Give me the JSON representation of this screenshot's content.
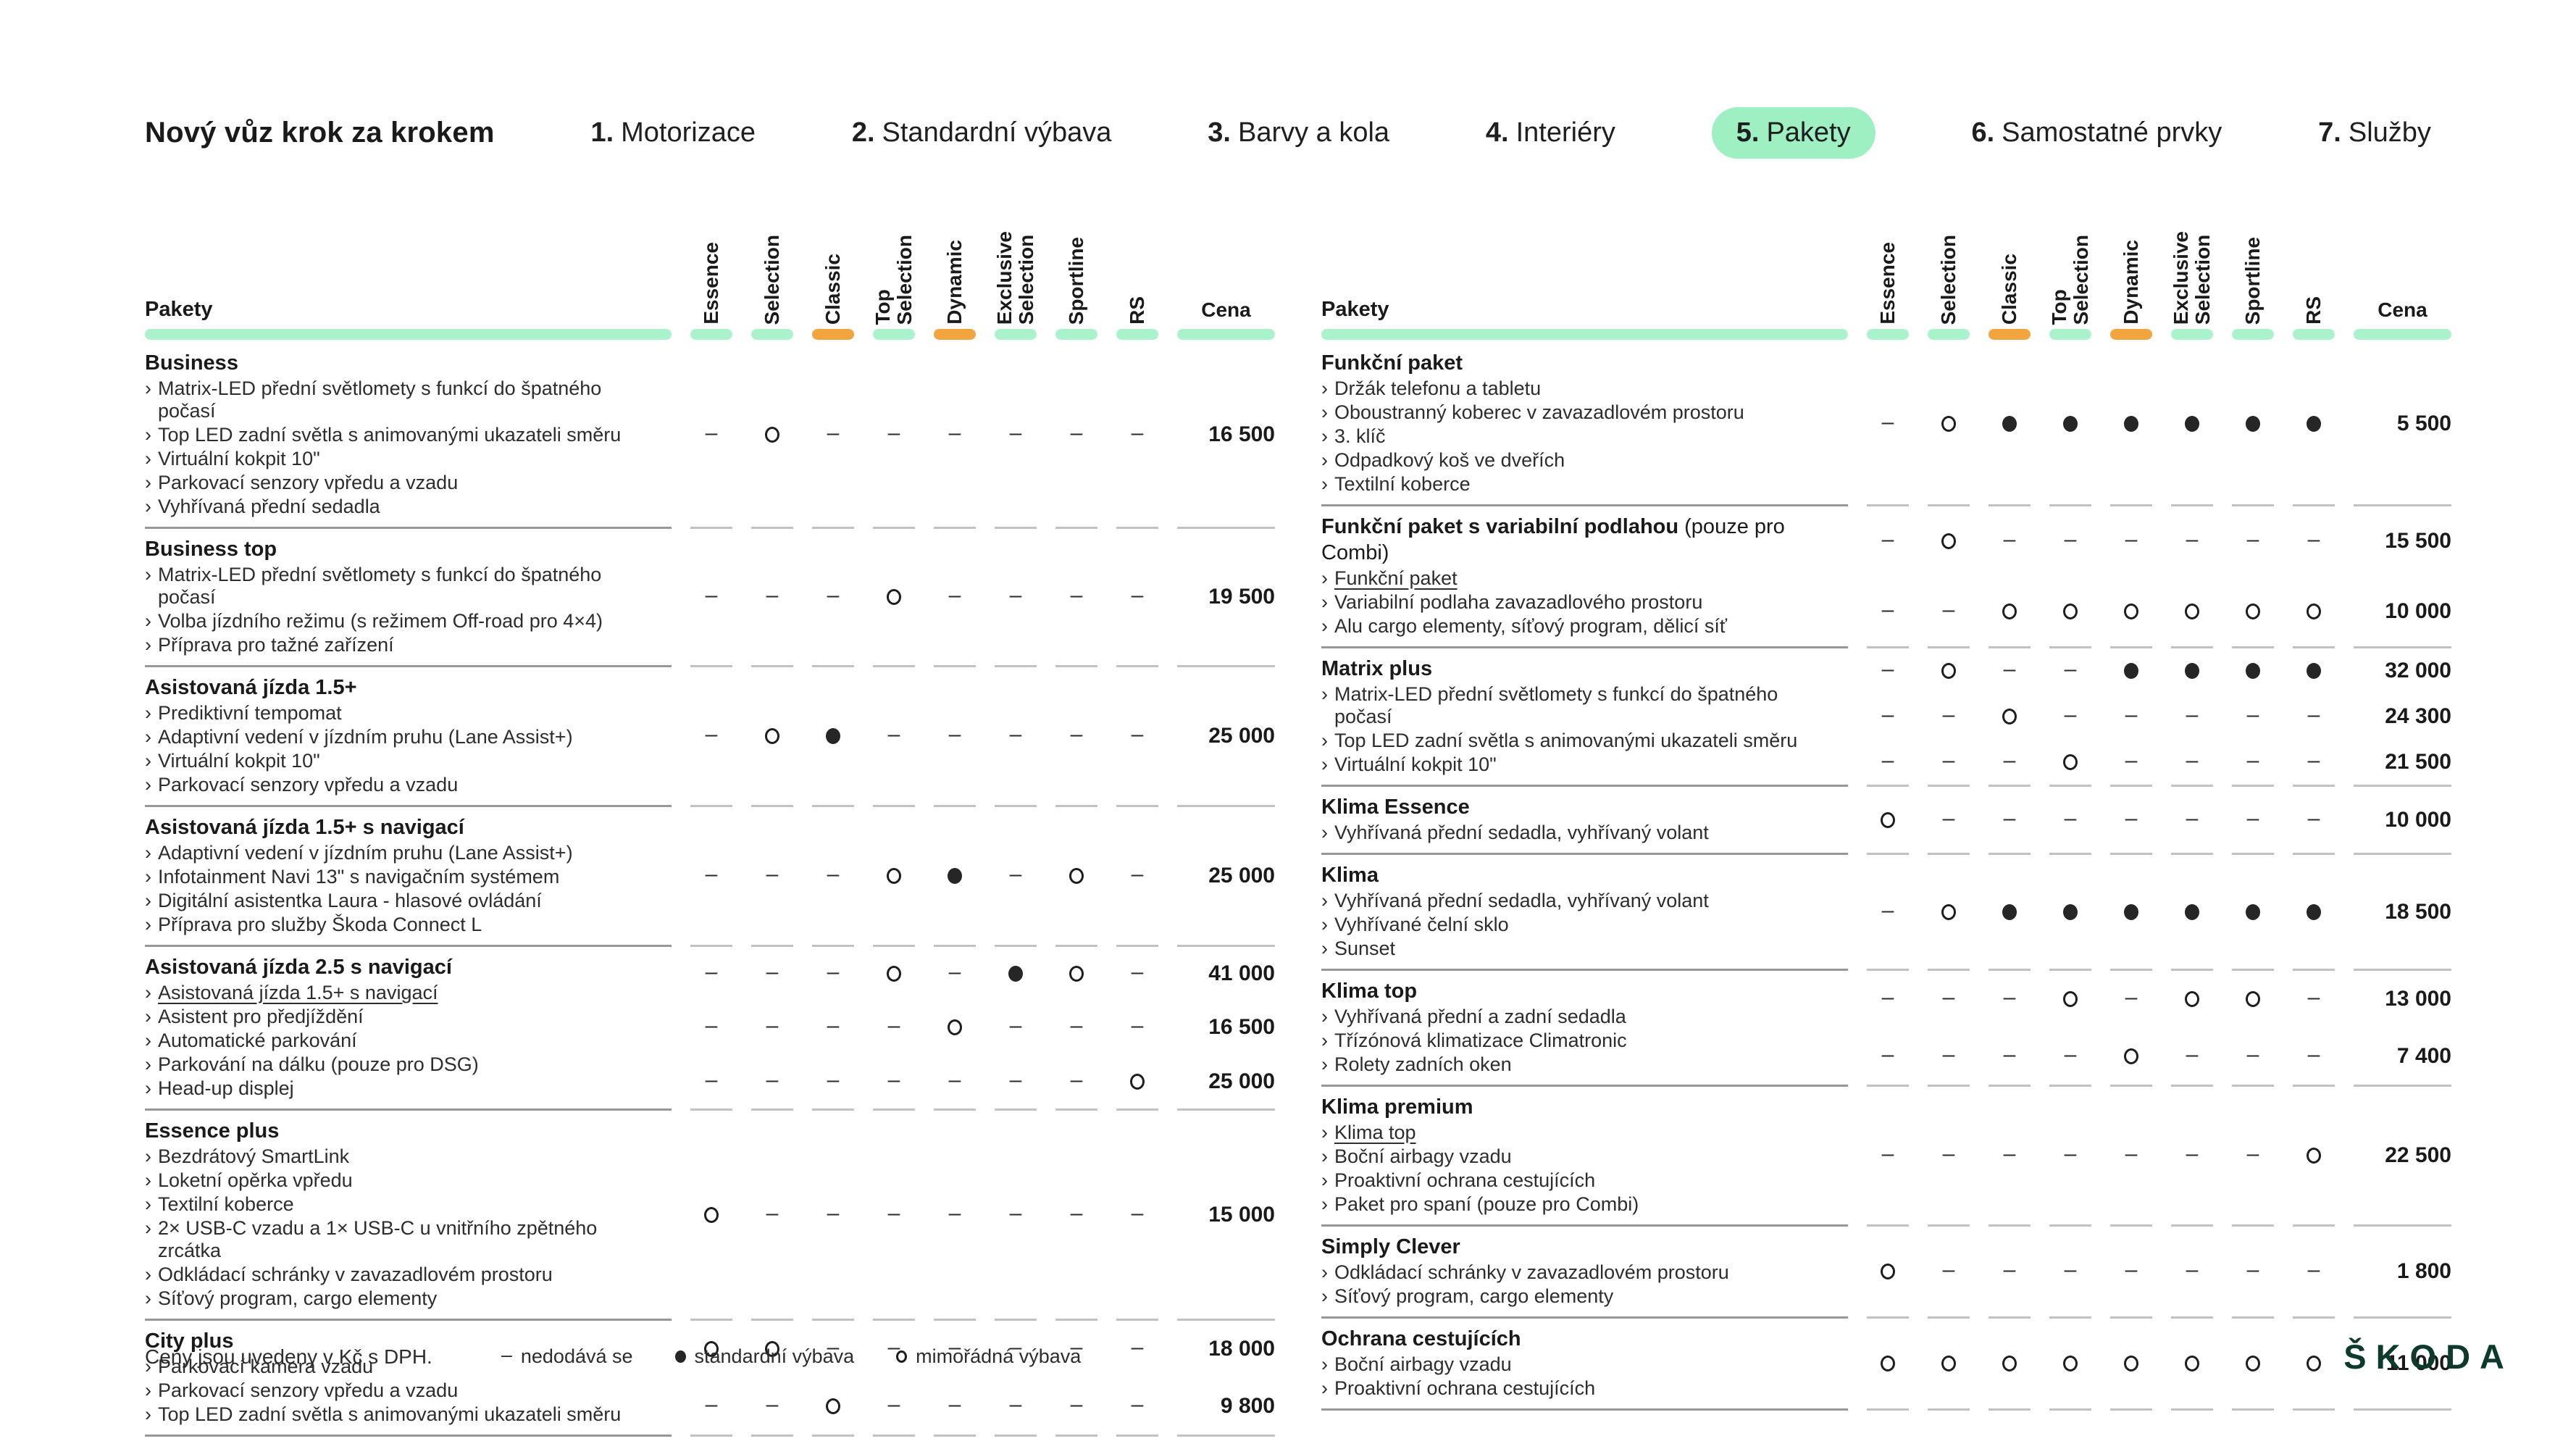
{
  "colors": {
    "active_pill_green": "#9ef0c3",
    "bar_green": "#a9f2cc",
    "bar_orange": "#f2a43e",
    "skoda_logo_green": "#0d3a2c"
  },
  "header": {
    "title": "Nový vůz krok za krokem",
    "steps": [
      {
        "number": "1.",
        "label": "Motorizace",
        "active": false
      },
      {
        "number": "2.",
        "label": "Standardní výbava",
        "active": false
      },
      {
        "number": "3.",
        "label": "Barvy a kola",
        "active": false
      },
      {
        "number": "4.",
        "label": "Interiéry",
        "active": false
      },
      {
        "number": "5.",
        "label": "Pakety",
        "active": true
      },
      {
        "number": "6.",
        "label": "Samostatné prvky",
        "active": false
      },
      {
        "number": "7.",
        "label": "Služby",
        "active": false
      }
    ]
  },
  "row_header_label": "Pakety",
  "price_column_label": "Cena",
  "columns": [
    {
      "label": "Essence",
      "accent": "green"
    },
    {
      "label": "Selection",
      "accent": "green"
    },
    {
      "label": "Classic",
      "accent": "orange"
    },
    {
      "label": "Top Selection",
      "accent": "green"
    },
    {
      "label": "Dynamic",
      "accent": "orange"
    },
    {
      "label": "Exclusive Selection",
      "accent": "green"
    },
    {
      "label": "Sportline",
      "accent": "green"
    },
    {
      "label": "RS",
      "accent": "green"
    }
  ],
  "tables": [
    {
      "packages": [
        {
          "title": "Business",
          "note": "",
          "items": [
            {
              "text": "Matrix-LED přední světlomety s funkcí do špatného počasí",
              "link": false
            },
            {
              "text": "Top LED zadní světla s animovanými ukazateli směru",
              "link": false
            },
            {
              "text": "Virtuální kokpit 10\"",
              "link": false
            },
            {
              "text": "Parkovací senzory vpředu a vzadu",
              "link": false
            },
            {
              "text": "Vyhřívaná přední sedadla",
              "link": false
            }
          ],
          "rows": [
            {
              "cells": [
                "-",
                "o",
                "-",
                "-",
                "-",
                "-",
                "-",
                "-"
              ],
              "price": "16 500"
            }
          ]
        },
        {
          "title": "Business top",
          "note": "",
          "items": [
            {
              "text": "Matrix-LED přední světlomety s funkcí do špatného počasí",
              "link": false
            },
            {
              "text": "Volba jízdního režimu (s režimem Off-road pro 4×4)",
              "link": false
            },
            {
              "text": "Příprava pro tažné zařízení",
              "link": false
            }
          ],
          "rows": [
            {
              "cells": [
                "-",
                "-",
                "-",
                "o",
                "-",
                "-",
                "-",
                "-"
              ],
              "price": "19 500"
            }
          ]
        },
        {
          "title": "Asistovaná jízda 1.5+",
          "note": "",
          "items": [
            {
              "text": "Prediktivní tempomat",
              "link": false
            },
            {
              "text": "Adaptivní vedení v jízdním pruhu (Lane Assist+)",
              "link": false
            },
            {
              "text": "Virtuální kokpit 10\"",
              "link": false
            },
            {
              "text": "Parkovací senzory vpředu a vzadu",
              "link": false
            }
          ],
          "rows": [
            {
              "cells": [
                "-",
                "o",
                "s",
                "-",
                "-",
                "-",
                "-",
                "-"
              ],
              "price": "25 000"
            }
          ]
        },
        {
          "title": "Asistovaná jízda 1.5+ s navigací",
          "note": "",
          "items": [
            {
              "text": "Adaptivní vedení v jízdním pruhu (Lane Assist+)",
              "link": false
            },
            {
              "text": "Infotainment Navi 13\" s navigačním systémem",
              "link": false
            },
            {
              "text": "Digitální asistentka Laura - hlasové ovládání",
              "link": false
            },
            {
              "text": "Příprava pro služby Škoda Connect L",
              "link": false
            }
          ],
          "rows": [
            {
              "cells": [
                "-",
                "-",
                "-",
                "o",
                "s",
                "-",
                "o",
                "-"
              ],
              "price": "25 000"
            }
          ]
        },
        {
          "title": "Asistovaná jízda 2.5 s navigací",
          "note": "",
          "items": [
            {
              "text": "Asistovaná jízda 1.5+ s navigací",
              "link": true
            },
            {
              "text": "Asistent pro předjíždění",
              "link": false
            },
            {
              "text": "Automatické parkování",
              "link": false
            },
            {
              "text": "Parkování na dálku (pouze pro DSG)",
              "link": false
            },
            {
              "text": "Head-up displej",
              "link": false
            }
          ],
          "rows": [
            {
              "cells": [
                "-",
                "-",
                "-",
                "o",
                "-",
                "s",
                "o",
                "-"
              ],
              "price": "41 000"
            },
            {
              "cells": [
                "-",
                "-",
                "-",
                "-",
                "o",
                "-",
                "-",
                "-"
              ],
              "price": "16 500"
            },
            {
              "cells": [
                "-",
                "-",
                "-",
                "-",
                "-",
                "-",
                "-",
                "o"
              ],
              "price": "25 000"
            }
          ]
        },
        {
          "title": "Essence plus",
          "note": "",
          "items": [
            {
              "text": "Bezdrátový SmartLink",
              "link": false
            },
            {
              "text": "Loketní opěrka vpředu",
              "link": false
            },
            {
              "text": "Textilní koberce",
              "link": false
            },
            {
              "text": "2× USB-C vzadu a 1× USB-C u vnitřního zpětného zrcátka",
              "link": false
            },
            {
              "text": "Odkládací schránky v zavazadlovém prostoru",
              "link": false
            },
            {
              "text": "Síťový program, cargo elementy",
              "link": false
            }
          ],
          "rows": [
            {
              "cells": [
                "o",
                "-",
                "-",
                "-",
                "-",
                "-",
                "-",
                "-"
              ],
              "price": "15 000"
            }
          ]
        },
        {
          "title": "City plus",
          "note": "",
          "items": [
            {
              "text": "Parkovací kamera vzadu",
              "link": false
            },
            {
              "text": "Parkovací senzory vpředu a vzadu",
              "link": false
            },
            {
              "text": "Top LED zadní světla s animovanými ukazateli směru",
              "link": false
            }
          ],
          "rows": [
            {
              "cells": [
                "o",
                "o",
                "-",
                "-",
                "-",
                "-",
                "-",
                "-"
              ],
              "price": "18 000"
            },
            {
              "cells": [
                "-",
                "-",
                "o",
                "-",
                "-",
                "-",
                "-",
                "-"
              ],
              "price": "9 800"
            }
          ]
        }
      ]
    },
    {
      "packages": [
        {
          "title": "Funkční paket",
          "note": "",
          "items": [
            {
              "text": "Držák telefonu a tabletu",
              "link": false
            },
            {
              "text": "Oboustranný koberec v zavazadlovém prostoru",
              "link": false
            },
            {
              "text": "3. klíč",
              "link": false
            },
            {
              "text": "Odpadkový koš ve dveřích",
              "link": false
            },
            {
              "text": "Textilní koberce",
              "link": false
            }
          ],
          "rows": [
            {
              "cells": [
                "-",
                "o",
                "s",
                "s",
                "s",
                "s",
                "s",
                "s"
              ],
              "price": "5 500"
            }
          ]
        },
        {
          "title": "Funkční paket s variabilní podlahou",
          "note": "(pouze pro Combi)",
          "items": [
            {
              "text": "Funkční paket",
              "link": true
            },
            {
              "text": "Variabilní podlaha zavazadlového prostoru",
              "link": false
            },
            {
              "text": "Alu cargo elementy, síťový program, dělicí síť",
              "link": false
            }
          ],
          "rows": [
            {
              "cells": [
                "-",
                "o",
                "-",
                "-",
                "-",
                "-",
                "-",
                "-"
              ],
              "price": "15 500"
            },
            {
              "cells": [
                "-",
                "-",
                "o",
                "o",
                "o",
                "o",
                "o",
                "o"
              ],
              "price": "10 000"
            }
          ]
        },
        {
          "title": "Matrix plus",
          "note": "",
          "items": [
            {
              "text": "Matrix-LED přední světlomety s funkcí do špatného počasí",
              "link": false
            },
            {
              "text": "Top LED zadní světla s animovanými ukazateli směru",
              "link": false
            },
            {
              "text": "Virtuální kokpit 10\"",
              "link": false
            }
          ],
          "rows": [
            {
              "cells": [
                "-",
                "o",
                "-",
                "-",
                "s",
                "s",
                "s",
                "s"
              ],
              "price": "32 000"
            },
            {
              "cells": [
                "-",
                "-",
                "o",
                "-",
                "-",
                "-",
                "-",
                "-"
              ],
              "price": "24 300"
            },
            {
              "cells": [
                "-",
                "-",
                "-",
                "o",
                "-",
                "-",
                "-",
                "-"
              ],
              "price": "21 500"
            }
          ]
        },
        {
          "title": "Klima Essence",
          "note": "",
          "items": [
            {
              "text": "Vyhřívaná přední sedadla, vyhřívaný volant",
              "link": false
            }
          ],
          "rows": [
            {
              "cells": [
                "o",
                "-",
                "-",
                "-",
                "-",
                "-",
                "-",
                "-"
              ],
              "price": "10 000"
            }
          ]
        },
        {
          "title": "Klima",
          "note": "",
          "items": [
            {
              "text": "Vyhřívaná přední sedadla, vyhřívaný volant",
              "link": false
            },
            {
              "text": "Vyhřívané čelní sklo",
              "link": false
            },
            {
              "text": "Sunset",
              "link": false
            }
          ],
          "rows": [
            {
              "cells": [
                "-",
                "o",
                "s",
                "s",
                "s",
                "s",
                "s",
                "s"
              ],
              "price": "18 500"
            }
          ]
        },
        {
          "title": "Klima top",
          "note": "",
          "items": [
            {
              "text": "Vyhřívaná přední a zadní sedadla",
              "link": false
            },
            {
              "text": "Třízónová klimatizace Climatronic",
              "link": false
            },
            {
              "text": "Rolety zadních oken",
              "link": false
            }
          ],
          "rows": [
            {
              "cells": [
                "-",
                "-",
                "-",
                "o",
                "-",
                "o",
                "o",
                "-"
              ],
              "price": "13 000"
            },
            {
              "cells": [
                "-",
                "-",
                "-",
                "-",
                "o",
                "-",
                "-",
                "-"
              ],
              "price": "7 400"
            }
          ]
        },
        {
          "title": "Klima premium",
          "note": "",
          "items": [
            {
              "text": "Klima top",
              "link": true
            },
            {
              "text": "Boční airbagy vzadu",
              "link": false
            },
            {
              "text": "Proaktivní ochrana cestujících",
              "link": false
            },
            {
              "text": "Paket pro spaní (pouze pro Combi)",
              "link": false
            }
          ],
          "rows": [
            {
              "cells": [
                "-",
                "-",
                "-",
                "-",
                "-",
                "-",
                "-",
                "o"
              ],
              "price": "22 500"
            }
          ]
        },
        {
          "title": "Simply Clever",
          "note": "",
          "items": [
            {
              "text": "Odkládací schránky v zavazadlovém prostoru",
              "link": false
            },
            {
              "text": "Síťový program, cargo elementy",
              "link": false
            }
          ],
          "rows": [
            {
              "cells": [
                "o",
                "-",
                "-",
                "-",
                "-",
                "-",
                "-",
                "-"
              ],
              "price": "1 800"
            }
          ]
        },
        {
          "title": "Ochrana cestujících",
          "note": "",
          "items": [
            {
              "text": "Boční airbagy vzadu",
              "link": false
            },
            {
              "text": "Proaktivní ochrana cestujících",
              "link": false
            }
          ],
          "rows": [
            {
              "cells": [
                "o",
                "o",
                "o",
                "o",
                "o",
                "o",
                "o",
                "o"
              ],
              "price": "11 000"
            }
          ]
        }
      ]
    }
  ],
  "footer": {
    "note": "Ceny jsou uvedeny v Kč s DPH.",
    "legend": [
      {
        "symbol": "-",
        "label": "nedodává se"
      },
      {
        "symbol": "s",
        "label": "standardní výbava"
      },
      {
        "symbol": "o",
        "label": "mimořádná výbava"
      }
    ],
    "logo_text": "ŠKODA"
  }
}
